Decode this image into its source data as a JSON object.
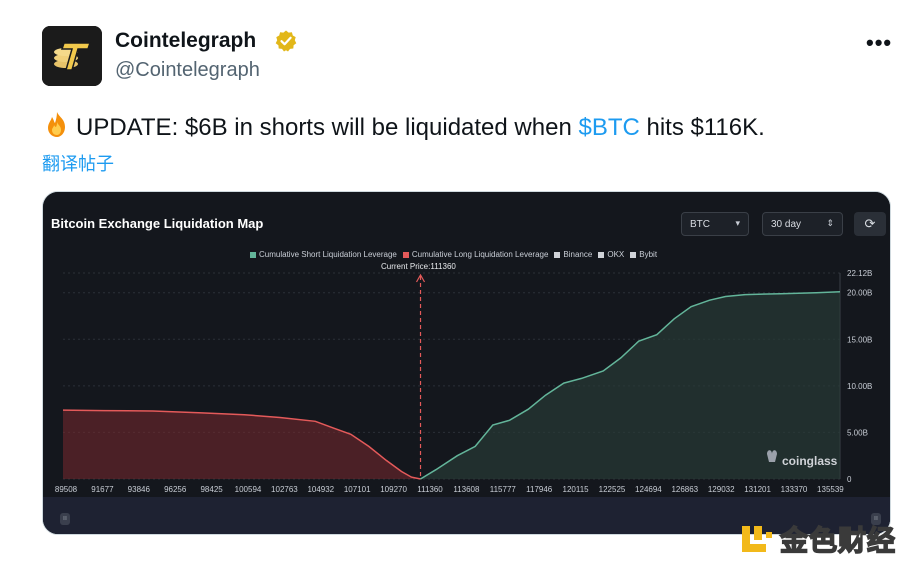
{
  "author": {
    "name": "Cointelegraph",
    "handle": "@Cointelegraph",
    "verified_icon": "verified-badge-icon",
    "more_label": "•••"
  },
  "tweet": {
    "emoji": "fire-icon",
    "text_before": "UPDATE: $6B in shorts will be liquidated when ",
    "cashtag": "$BTC",
    "text_after": " hits $116K.",
    "translate_label": "翻译帖子"
  },
  "card": {
    "title": "Bitcoin Exchange Liquidation Map",
    "coin_select": "BTC",
    "range_select": "30 day",
    "refresh_icon": "refresh-icon",
    "current_price_label": "Current Price:111360",
    "brand": "coinglass"
  },
  "watermark": {
    "text": "金色财经"
  },
  "colors": {
    "short": "#63b59a",
    "long": "#e45a5a",
    "link": "#1d9bf0"
  },
  "chart_data": {
    "type": "area",
    "title": "Bitcoin Exchange Liquidation Map",
    "legend": [
      {
        "name": "Cumulative Short Liquidation Leverage",
        "color": "#63b59a"
      },
      {
        "name": "Cumulative Long Liquidation Leverage",
        "color": "#e45a5a"
      },
      {
        "name": "Binance",
        "color": "#d0d3d8"
      },
      {
        "name": "OKX",
        "color": "#d0d3d8"
      },
      {
        "name": "Bybit",
        "color": "#d0d3d8"
      }
    ],
    "x_ticks": [
      "89508",
      "91677",
      "93846",
      "96256",
      "98425",
      "100594",
      "102763",
      "104932",
      "107101",
      "109270",
      "111360",
      "113608",
      "115777",
      "117946",
      "120115",
      "122525",
      "124694",
      "126863",
      "129032",
      "131201",
      "133370",
      "135539"
    ],
    "y_ticks": [
      "22.12B",
      "20.00B",
      "15.00B",
      "10.00B",
      "5.00B",
      "0"
    ],
    "ylim": [
      0,
      22.12
    ],
    "xlim": [
      89508,
      137000
    ],
    "current_price": 111360,
    "series": [
      {
        "name": "Cumulative Long Liquidation Leverage",
        "x": [
          89508,
          92000,
          95000,
          98000,
          100594,
          102763,
          104932,
          106000,
          107101,
          108200,
          109270,
          110200,
          110800,
          111360
        ],
        "y": [
          7.4,
          7.35,
          7.3,
          7.1,
          6.9,
          6.6,
          6.2,
          5.5,
          4.8,
          3.5,
          2.0,
          0.8,
          0.2,
          0.0
        ]
      },
      {
        "name": "Cumulative Short Liquidation Leverage",
        "x": [
          111360,
          112300,
          113608,
          114700,
          115777,
          116800,
          117946,
          119000,
          120115,
          121200,
          122525,
          123600,
          124694,
          125800,
          126863,
          127900,
          129032,
          130000,
          131201,
          133370,
          135539,
          137000
        ],
        "y": [
          0.0,
          1.0,
          2.5,
          3.5,
          5.8,
          6.3,
          7.5,
          9.0,
          10.3,
          10.8,
          11.6,
          13.0,
          14.8,
          15.5,
          17.2,
          18.5,
          19.2,
          19.6,
          19.8,
          19.9,
          20.0,
          20.1
        ]
      }
    ],
    "grid": true
  }
}
